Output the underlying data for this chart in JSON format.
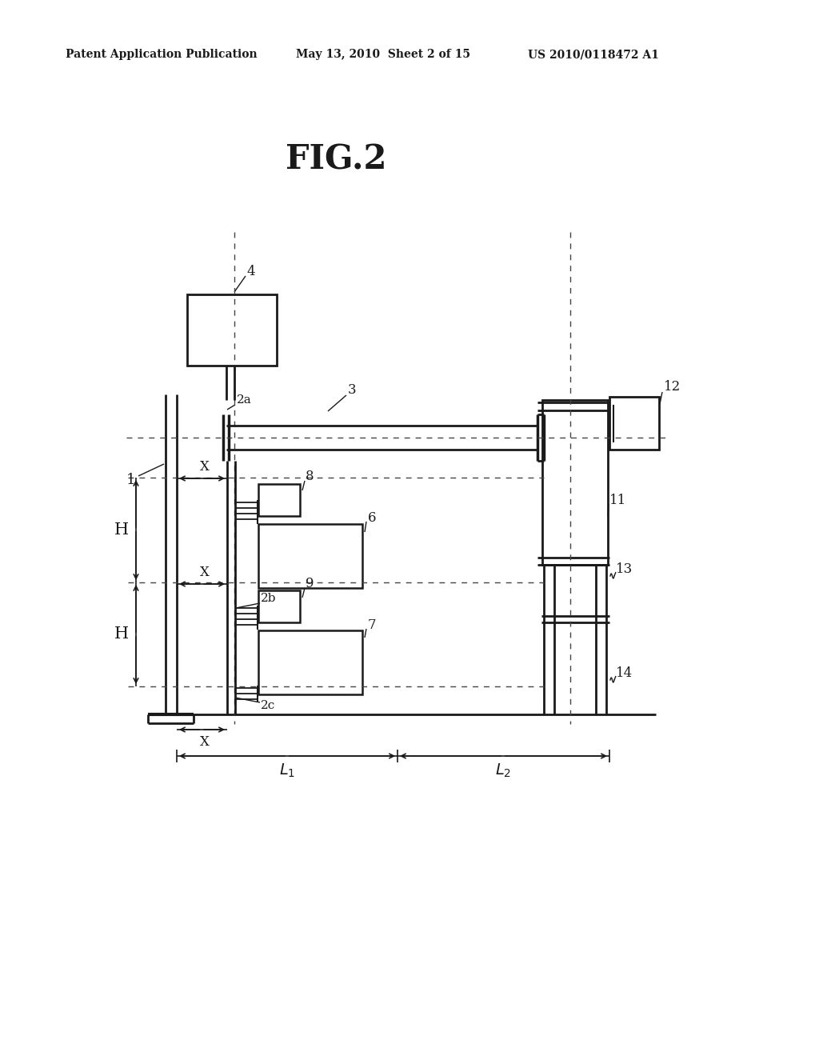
{
  "bg_color": "#ffffff",
  "line_color": "#1a1a1a",
  "title": "FIG.2",
  "header_left": "Patent Application Publication",
  "header_mid": "May 13, 2010  Sheet 2 of 15",
  "header_right": "US 2010/0118472 A1"
}
